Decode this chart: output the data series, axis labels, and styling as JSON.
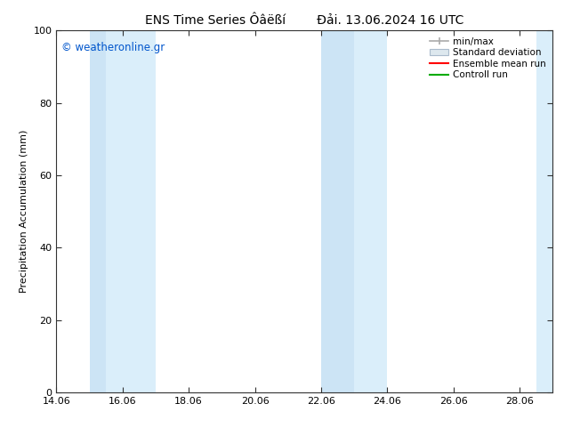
{
  "title_left": "ENS Time Series Ôâëßí",
  "title_right": "Đải. 13.06.2024 16 UTC",
  "ylabel": "Precipitation Accumulation (mm)",
  "watermark": "© weatheronline.gr",
  "watermark_color": "#0055cc",
  "xlim_left": 14.06,
  "xlim_right": 29.06,
  "ylim_bottom": 0,
  "ylim_top": 100,
  "xticks": [
    14.06,
    16.06,
    18.06,
    20.06,
    22.06,
    24.06,
    26.06,
    28.06
  ],
  "xtick_labels": [
    "14.06",
    "16.06",
    "18.06",
    "20.06",
    "22.06",
    "24.06",
    "26.06",
    "28.06"
  ],
  "yticks": [
    0,
    20,
    40,
    60,
    80,
    100
  ],
  "shaded_regions": [
    {
      "x_start": 15.06,
      "x_end": 15.56,
      "color": "#cce4f5"
    },
    {
      "x_start": 15.56,
      "x_end": 17.06,
      "color": "#daeefa"
    },
    {
      "x_start": 22.06,
      "x_end": 23.06,
      "color": "#cce4f5"
    },
    {
      "x_start": 23.06,
      "x_end": 24.06,
      "color": "#daeefa"
    },
    {
      "x_start": 28.56,
      "x_end": 29.06,
      "color": "#daeefa"
    }
  ],
  "legend_labels": [
    "min/max",
    "Standard deviation",
    "Ensemble mean run",
    "Controll run"
  ],
  "legend_colors": [
    "#aaaaaa",
    "#cccccc",
    "#ff0000",
    "#00aa00"
  ],
  "background_color": "#ffffff",
  "plot_bg_color": "#ffffff",
  "title_fontsize": 10,
  "tick_fontsize": 8,
  "ylabel_fontsize": 8,
  "legend_fontsize": 7.5
}
